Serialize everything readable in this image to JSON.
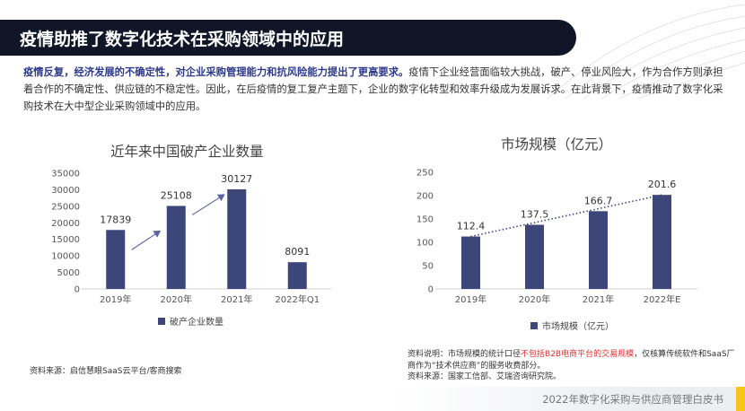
{
  "title": "疫情助推了数字化技术在采购领域中的应用",
  "intro": {
    "highlight": "疫情反复，经济发展的不确定性，对企业采购管理能力和抗风险能力提出了更高要求。",
    "rest": "疫情下企业经营面临较大挑战，破产、停业风险大，作为合作方则承担着合作的不确定性、供应链的不稳定性。因此，在后疫情的复工复产主题下，企业的数字化转型和效率升级成为发展诉求。在此背景下，疫情推动了数字化采购技术在大中型企业采购领域中的应用。"
  },
  "chart_data": [
    {
      "type": "bar",
      "title": "近年来中国破产企业数量",
      "categories": [
        "2019年",
        "2020年",
        "2021年",
        "2022年Q1"
      ],
      "series": [
        {
          "name": "破产企业数量",
          "values": [
            17839,
            25108,
            30127,
            8091
          ]
        }
      ],
      "ylim": [
        0,
        35000
      ],
      "yticks": [
        0,
        5000,
        10000,
        15000,
        20000,
        25000,
        30000,
        35000
      ],
      "grid": false,
      "legend": "bottom",
      "annotations": "arrows indicating upward trend 2019→2020→2021",
      "bar_color": "#3c4679"
    },
    {
      "type": "bar",
      "title": "市场规模（亿元）",
      "categories": [
        "2019年",
        "2020年",
        "2021年",
        "2022年E"
      ],
      "series": [
        {
          "name": "市场规模（亿元）",
          "values": [
            112.4,
            137.5,
            166.7,
            201.6
          ]
        }
      ],
      "ylim": [
        0,
        250
      ],
      "yticks": [
        0,
        50,
        100,
        150,
        200,
        250
      ],
      "grid": false,
      "legend": "bottom",
      "annotations": "dotted trend line",
      "bar_color": "#3c4679"
    }
  ],
  "source_left": "资料来源：启信慧眼SaaS云平台/客商搜索",
  "note": {
    "prefix": "资料说明：市场规模的统计口径",
    "red": "不包括B2B电商平台的交易规模",
    "suffix": "，仅核算传统软件和SaaS厂商作为“技术供应商”的服务收费部分。",
    "source": "资料来源：国家工信部、艾瑞咨询研究院。"
  },
  "footer": "2022年数字化采购与供应商管理白皮书",
  "colors": {
    "bar": "#3c4679",
    "title_bar": "#101528",
    "highlight": "#2d3a8c",
    "accent": "#f5c518",
    "note_red": "#e0302b"
  }
}
